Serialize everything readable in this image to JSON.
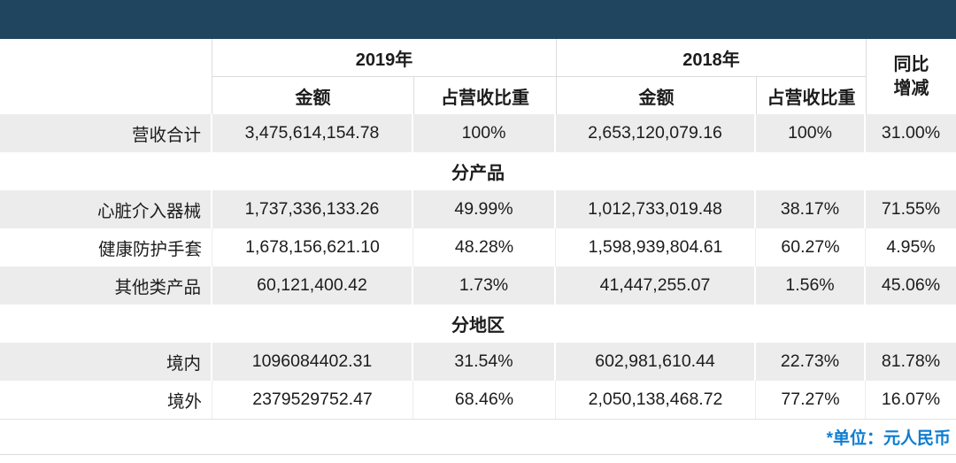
{
  "banner": {
    "background": "#20455E"
  },
  "header": {
    "year_2019": "2019年",
    "year_2018": "2018年",
    "amount_label": "金额",
    "share_label": "占营收比重",
    "yoy_line1": "同比",
    "yoy_line2": "增减"
  },
  "rows": [
    {
      "label": "营收合计",
      "amount_2019": "3,475,614,154.78",
      "share_2019": "100%",
      "amount_2018": "2,653,120,079.16",
      "share_2018": "100%",
      "yoy": "31.00%"
    },
    {
      "section": "分产品"
    },
    {
      "label": "心脏介入器械",
      "amount_2019": "1,737,336,133.26",
      "share_2019": "49.99%",
      "amount_2018": "1,012,733,019.48",
      "share_2018": "38.17%",
      "yoy": "71.55%"
    },
    {
      "label": "健康防护手套",
      "amount_2019": "1,678,156,621.10",
      "share_2019": "48.28%",
      "amount_2018": "1,598,939,804.61",
      "share_2018": "60.27%",
      "yoy": "4.95%"
    },
    {
      "label": "其他类产品",
      "amount_2019": "60,121,400.42",
      "share_2019": "1.73%",
      "amount_2018": "41,447,255.07",
      "share_2018": "1.56%",
      "yoy": "45.06%"
    },
    {
      "section": "分地区"
    },
    {
      "label": "境内",
      "amount_2019": "1096084402.31",
      "share_2019": "31.54%",
      "amount_2018": "602,981,610.44",
      "share_2018": "22.73%",
      "yoy": "81.78%"
    },
    {
      "label": "境外",
      "amount_2019": "2379529752.47",
      "share_2019": "68.46%",
      "amount_2018": "2,050,138,468.72",
      "share_2018": "77.27%",
      "yoy": "16.07%"
    }
  ],
  "footer": {
    "unit_note": "*单位：元人民币"
  },
  "colors": {
    "banner_navy": "#20455E",
    "row_shade_gray": "#ECECEC",
    "grid_line": "#DCDCDC",
    "text": "#1C1C1C",
    "note_blue": "#0D7DD1"
  },
  "chart_data": {
    "type": "table",
    "columns": [
      "",
      "2019年 金额",
      "2019年 占营收比重",
      "2018年 金额",
      "2018年 占营收比重",
      "同比增减"
    ],
    "rows": [
      {
        "group": "",
        "label": "营收合计",
        "amount_2019": 3475614154.78,
        "share_2019_pct": 100,
        "amount_2018": 2653120079.16,
        "share_2018_pct": 100,
        "yoy_change_pct": 31.0
      },
      {
        "group": "分产品",
        "label": "心脏介入器械",
        "amount_2019": 1737336133.26,
        "share_2019_pct": 49.99,
        "amount_2018": 1012733019.48,
        "share_2018_pct": 38.17,
        "yoy_change_pct": 71.55
      },
      {
        "group": "分产品",
        "label": "健康防护手套",
        "amount_2019": 1678156621.1,
        "share_2019_pct": 48.28,
        "amount_2018": 1598939804.61,
        "share_2018_pct": 60.27,
        "yoy_change_pct": 4.95
      },
      {
        "group": "分产品",
        "label": "其他类产品",
        "amount_2019": 60121400.42,
        "share_2019_pct": 1.73,
        "amount_2018": 41447255.07,
        "share_2018_pct": 1.56,
        "yoy_change_pct": 45.06
      },
      {
        "group": "分地区",
        "label": "境内",
        "amount_2019": 1096084402.31,
        "share_2019_pct": 31.54,
        "amount_2018": 602981610.44,
        "share_2018_pct": 22.73,
        "yoy_change_pct": 81.78
      },
      {
        "group": "分地区",
        "label": "境外",
        "amount_2019": 2379529752.47,
        "share_2019_pct": 68.46,
        "amount_2018": 2050138468.72,
        "share_2018_pct": 77.27,
        "yoy_change_pct": 16.07
      }
    ],
    "unit_note": "*单位：元人民币"
  }
}
